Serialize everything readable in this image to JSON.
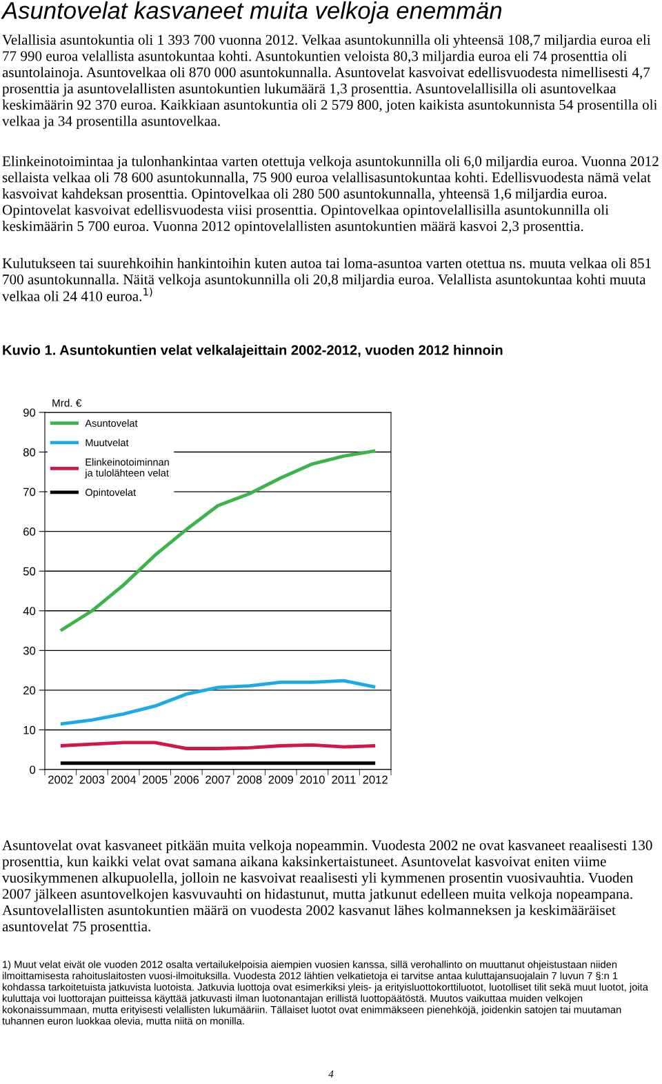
{
  "chart_data": {
    "type": "line",
    "title": "Kuvio 1. Asuntokuntien velat velkalajeittain 2002-2012, vuoden 2012 hinnoin",
    "ylabel": "Mrd. €",
    "categories": [
      "2002",
      "2003",
      "2004",
      "2005",
      "2006",
      "2007",
      "2008",
      "2009",
      "2010",
      "2011",
      "2012"
    ],
    "series": [
      {
        "name": "Asuntovelat",
        "color": "#3cb44b",
        "values": [
          35,
          40,
          46.5,
          54,
          60.5,
          66.5,
          69.5,
          73.5,
          77,
          79,
          80.3
        ]
      },
      {
        "name": "Muutvelat",
        "color": "#1ca9e6",
        "values": [
          11.5,
          12.5,
          14,
          16,
          19,
          20.7,
          21.1,
          22,
          22,
          22.4,
          20.8
        ]
      },
      {
        "name": "Elinkeinotoiminnan ja tulolähteen velat",
        "color": "#d0174a",
        "values": [
          6,
          6.4,
          6.8,
          6.8,
          5.3,
          5.3,
          5.5,
          6,
          6.2,
          5.7,
          6.0
        ]
      },
      {
        "name": "Opintovelat",
        "color": "#000000",
        "values": [
          1.6,
          1.6,
          1.6,
          1.6,
          1.6,
          1.6,
          1.6,
          1.6,
          1.6,
          1.6,
          1.6
        ]
      }
    ],
    "ylim": [
      0,
      90
    ],
    "yticks": [
      0,
      10,
      20,
      30,
      40,
      50,
      60,
      70,
      80,
      90
    ],
    "grid": "y",
    "legend": "top left",
    "line_style": "solid",
    "annotations": [
      "Asuntovelat kasvaneet muita velkoja enemmän",
      "Velallisia asuntokuntia oli 1 393 700 vuonna 2012. Velkaa asuntokunnilla oli yhteensä 108,7 miljardia euroa eli 77 990 euroa velallista asuntokuntaa kohti. Asuntokuntien veloista 80,3 miljardia euroa eli 74 prosenttia oli asuntolainoja. Asuntovelkaa oli 870 000 asuntokunnalla. Asuntovelat kasvoivat edellisvuodesta nimellisesti 4,7 prosenttia ja asuntovelallisten asuntokuntien lukumäärä 1,3 prosenttia. Asuntovelallisilla oli asuntovelkaa keskimäärin 92 370 euroa. Kaikkiaan asuntokuntia oli 2 579 800, joten kaikista asuntokunnista 54 prosentilla oli velkaa ja 34 prosentilla asuntovelkaa.",
      "Elinkeinotoimintaa ja tulonhankintaa varten otettuja velkoja asuntokunnilla oli 6,0 miljardia euroa. Vuonna 2012 sellaista velkaa oli 78 600 asuntokunnalla, 75 900 euroa velallisasuntokuntaa kohti. Edellisvuodesta nämä velat kasvoivat kahdeksan prosenttia. Opintovelkaa oli 280 500 asuntokunnalla, yhteensä 1,6 miljardia euroa. Opintovelat kasvoivat edellisvuodesta viisi prosenttia. Opintovelkaa opintovelallisilla asuntokunnilla oli keskimäärin 5 700 euroa. Vuonna 2012 opintovelallisten asuntokuntien määrä kasvoi 2,3 prosenttia.",
      "Kulutukseen tai suurehkoihin hankintoihin kuten autoa tai loma-asuntoa varten otettua ns. muuta velkaa oli 851 700 asuntokunnalla. Näitä velkoja asuntokunnilla oli 20,8 miljardia euroa. Velallista asuntokuntaa kohti muuta velkaa oli 24 410 euroa.$^{1)}$",
      "Asuntovelat ovat kasvaneet pitkään muita velkoja nopeammin. Vuodesta 2002 ne ovat kasvaneet reaalisesti 130 prosenttia, kun kaikki velat ovat samana aikana kaksinkertaistuneet. Asuntovelat kasvoivat eniten viime vuosikymmenen alkupuolella, jolloin ne kasvoivat reaalisesti yli kymmenen prosentin vuosivauhtia. Vuoden 2007 jälkeen asuntovelkojen kasvuvauhti on hidastunut, mutta jatkunut edelleen muita velkoja nopeampana. Asuntovelallisten asuntokuntien määrä on vuodesta 2002 kasvanut lähes kolmanneksen ja keskimääräiset asuntovelat 75 prosenttia.",
      "1) Muut velat eivät ole vuoden 2012 osalta vertailukelpoisia aiempien vuosien kanssa, sillä verohallinto on muuttanut ohjeistustaan niiden ilmoittamisesta rahoituslaitosten vuosi-ilmoituksilla. Vuodesta 2012 lähtien velkatietoja ei tarvitse antaa kuluttajansuojalain 7 luvun 7 §:n 1 kohdassa tarkoitetuista jatkuvista luotoista. Jatkuvia luottoja ovat esimerkiksi yleis- ja erityisluottokorttiluotot, luotolliset tilit sekä muut luotot, joita kuluttaja voi luottorajan puitteissa käyttää jatkuvasti ilman luotonantajan erillistä luottopäätöstä. Muutos vaikuttaa muiden velkojen kokonaissummaan, mutta erityisesti velallisten lukumääriin. Tällaiset luotot ovat enimmäkseen pienehköjä, joidenkin satojen tai muutaman tuhannen euron luokkaa olevia, mutta niitä on monilla.",
      "4"
    ]
  }
}
